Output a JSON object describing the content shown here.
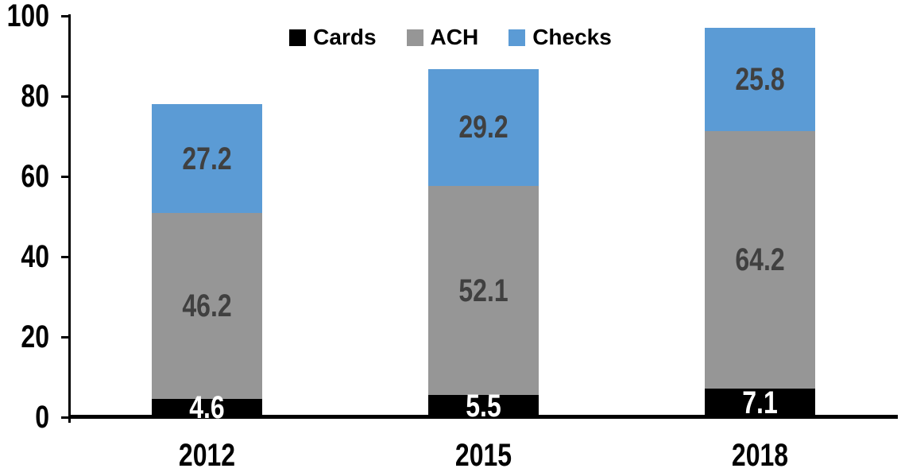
{
  "chart_data": {
    "type": "bar",
    "stacked": true,
    "title": "",
    "xlabel": "",
    "ylabel": "",
    "categories": [
      "2012",
      "2015",
      "2018"
    ],
    "series": [
      {
        "name": "Cards",
        "values": [
          4.6,
          5.5,
          7.1
        ],
        "color": "#000000",
        "label_color": "#FFFFFF"
      },
      {
        "name": "ACH",
        "values": [
          46.2,
          52.1,
          64.2
        ],
        "color": "#969696",
        "label_color": "#404040"
      },
      {
        "name": "Checks",
        "values": [
          27.2,
          29.2,
          25.8
        ],
        "color": "#5B9BD5",
        "label_color": "#404040"
      }
    ],
    "ylim": [
      0,
      100
    ],
    "yticks": [
      0,
      20,
      40,
      60,
      80,
      100
    ],
    "grid": false,
    "data_labels": true,
    "legend_position": "top-center",
    "axis_color": "#000000"
  }
}
